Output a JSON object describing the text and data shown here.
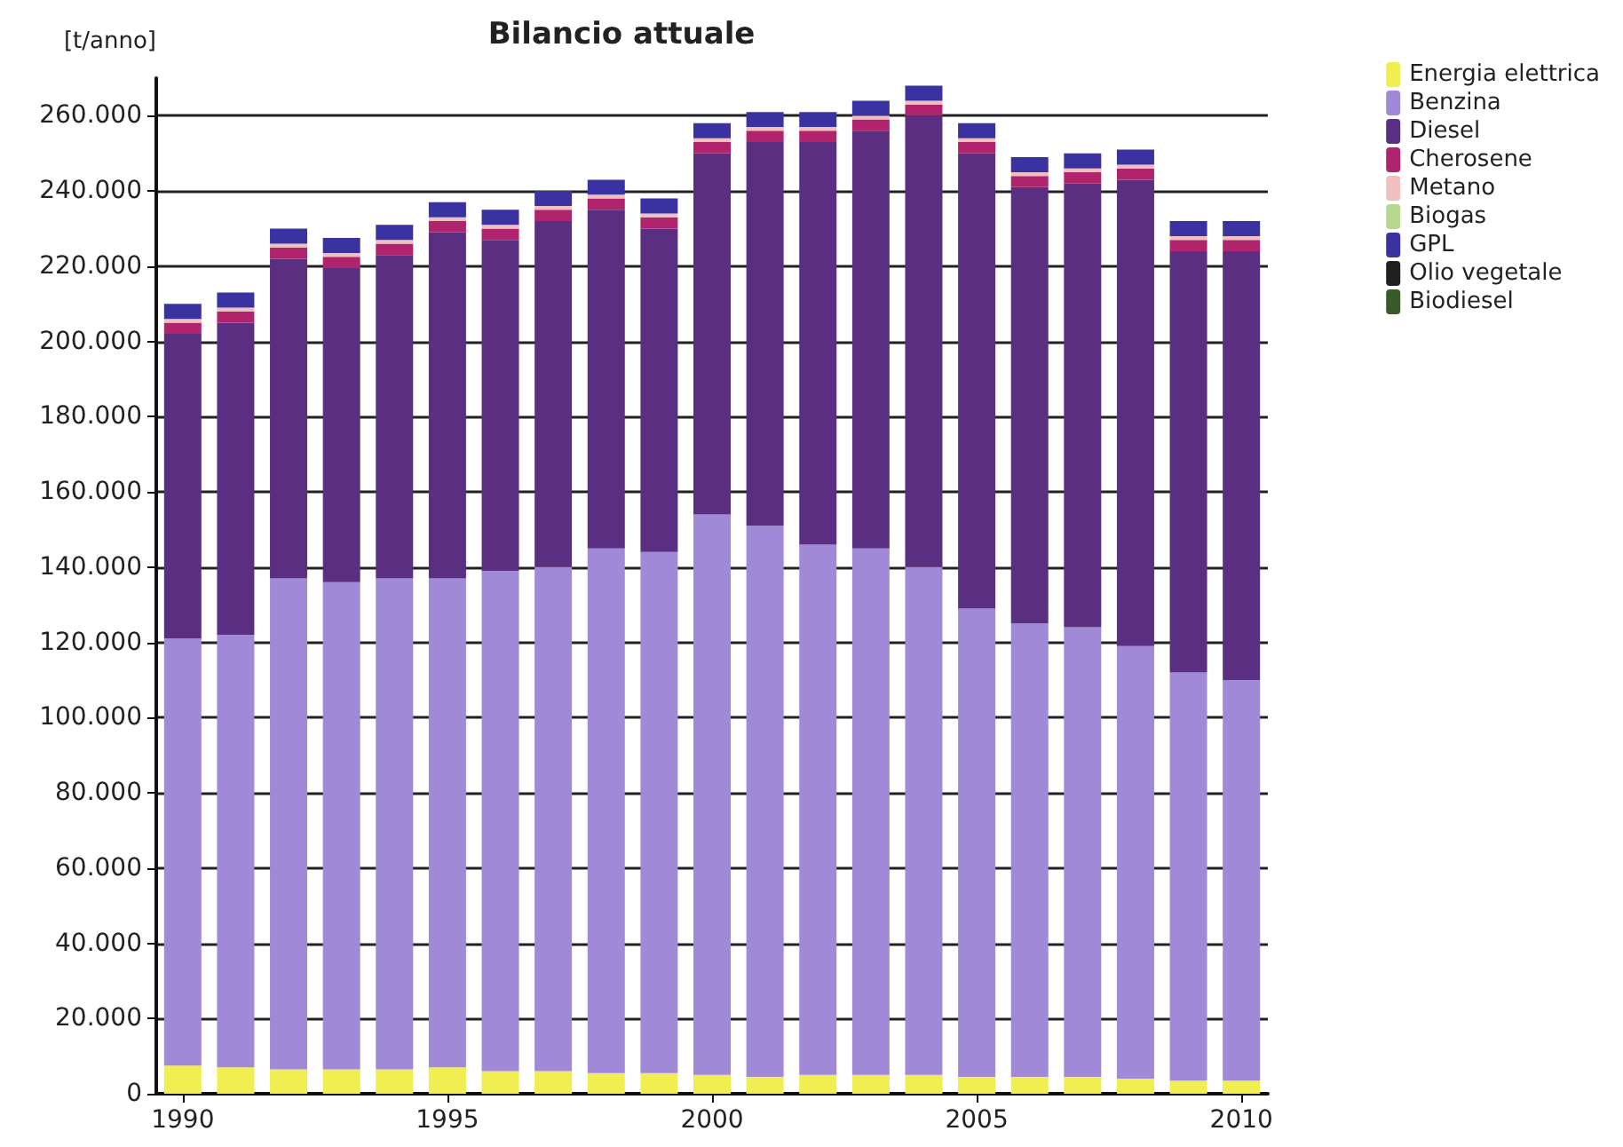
{
  "chart_data": {
    "type": "bar",
    "title": "Bilancio attuale",
    "ylabel": "[t/anno]",
    "stacked": true,
    "grid": "y",
    "legend": "top right",
    "x": [
      1990,
      1991,
      1992,
      1993,
      1994,
      1995,
      1996,
      1997,
      1998,
      1999,
      2000,
      2001,
      2002,
      2003,
      2004,
      2005,
      2006,
      2007,
      2008,
      2009,
      2010
    ],
    "xlim": [
      1989.5,
      2010.5
    ],
    "xticks": [
      1990,
      1995,
      2000,
      2005,
      2010
    ],
    "ylim": [
      0,
      270000
    ],
    "yticks": [
      {
        "value": 0,
        "label": "0"
      },
      {
        "value": 20000,
        "label": "20.000"
      },
      {
        "value": 40000,
        "label": "40.000"
      },
      {
        "value": 60000,
        "label": "60.000"
      },
      {
        "value": 80000,
        "label": "80.000"
      },
      {
        "value": 100000,
        "label": "100.000"
      },
      {
        "value": 120000,
        "label": "120.000"
      },
      {
        "value": 140000,
        "label": "140.000"
      },
      {
        "value": 160000,
        "label": "160.000"
      },
      {
        "value": 180000,
        "label": "180.000"
      },
      {
        "value": 200000,
        "label": "200.000"
      },
      {
        "value": 220000,
        "label": "220.000"
      },
      {
        "value": 240000,
        "label": "240.000"
      },
      {
        "value": 260000,
        "label": "260.000"
      }
    ],
    "series": [
      {
        "name": "Energia elettrica",
        "color": "#f0ee50",
        "values": [
          7500,
          7000,
          6500,
          6500,
          6500,
          7000,
          6000,
          6000,
          5500,
          5500,
          5000,
          4500,
          5000,
          5000,
          5000,
          4500,
          4500,
          4500,
          4000,
          3500,
          3500
        ]
      },
      {
        "name": "Benzina",
        "color": "#a08ad8",
        "values": [
          113500,
          115000,
          130500,
          129500,
          130500,
          130000,
          133000,
          134000,
          139500,
          138500,
          149000,
          146500,
          141000,
          140000,
          135000,
          124500,
          120500,
          119500,
          115000,
          108500,
          106500
        ]
      },
      {
        "name": "Diesel",
        "color": "#5a2f82",
        "values": [
          81000,
          83000,
          85000,
          83500,
          86000,
          92000,
          88000,
          92000,
          90000,
          86000,
          96000,
          102000,
          107000,
          111000,
          120000,
          121000,
          116000,
          118000,
          124000,
          112000,
          114000
        ]
      },
      {
        "name": "Cherosene",
        "color": "#b0246e",
        "values": [
          3000,
          3000,
          3000,
          3000,
          3000,
          3000,
          3000,
          3000,
          3000,
          3000,
          3000,
          3000,
          3000,
          3000,
          3000,
          3000,
          3000,
          3000,
          3000,
          3000,
          3000
        ]
      },
      {
        "name": "Metano",
        "color": "#f0c0c0",
        "values": [
          1000,
          1000,
          1000,
          1000,
          1000,
          1000,
          1000,
          1000,
          1000,
          1000,
          1000,
          1000,
          1000,
          1000,
          1000,
          1000,
          1000,
          1000,
          1000,
          1000,
          1000
        ]
      },
      {
        "name": "Biogas",
        "color": "#b8d890",
        "values": [
          0,
          0,
          0,
          0,
          0,
          0,
          0,
          0,
          0,
          0,
          0,
          0,
          0,
          0,
          0,
          0,
          0,
          0,
          0,
          0,
          0
        ]
      },
      {
        "name": "GPL",
        "color": "#3a32a0",
        "values": [
          4000,
          4000,
          4000,
          4000,
          4000,
          4000,
          4000,
          4000,
          4000,
          4000,
          4000,
          4000,
          4000,
          4000,
          4000,
          4000,
          4000,
          4000,
          4000,
          4000,
          4000
        ]
      },
      {
        "name": "Olio vegetale",
        "color": "#202020",
        "values": [
          0,
          0,
          0,
          0,
          0,
          0,
          0,
          0,
          0,
          0,
          0,
          0,
          0,
          0,
          0,
          0,
          0,
          0,
          0,
          0,
          0
        ]
      },
      {
        "name": "Biodiesel",
        "color": "#3a5a2a",
        "values": [
          0,
          0,
          0,
          0,
          0,
          0,
          0,
          0,
          0,
          0,
          0,
          0,
          0,
          0,
          0,
          0,
          0,
          0,
          0,
          0,
          0
        ]
      }
    ]
  }
}
